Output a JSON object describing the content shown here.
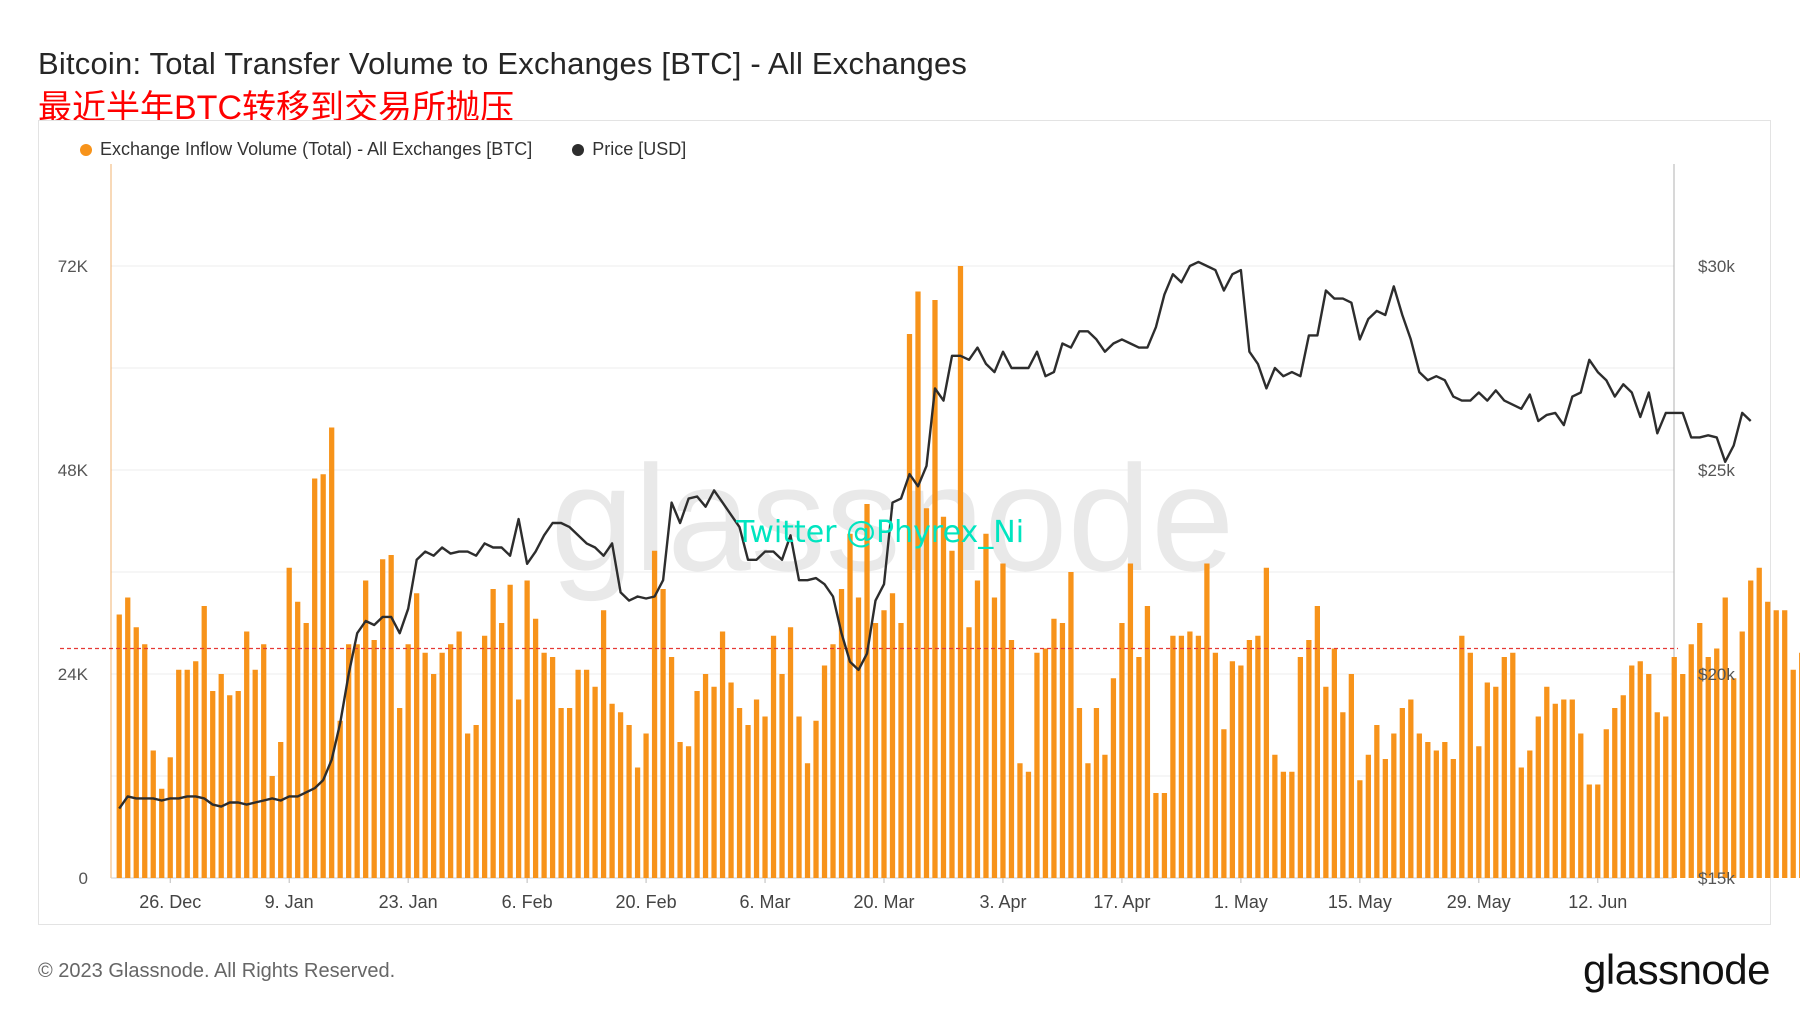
{
  "title": "Bitcoin: Total Transfer Volume to Exchanges [BTC] - All Exchanges",
  "subtitle": "最近半年BTC转移到交易所抛压",
  "legend": {
    "inflow": "Exchange Inflow Volume (Total) - All Exchanges [BTC]",
    "price": "Price [USD]"
  },
  "watermark": "glassnode",
  "overlay_text": "Twitter @Phyrex_Ni",
  "copyright": "© 2023 Glassnode. All Rights Reserved.",
  "logo": "glassnode",
  "colors": {
    "bars": "#f7931a",
    "price": "#2d2d2d",
    "reference": "#e53935",
    "overlay": "#00e5c0"
  },
  "chart_data": {
    "type": "bar",
    "x_start": "2022-12-20",
    "x_end": "2023-06-20",
    "x_ticks": [
      "26. Dec",
      "9. Jan",
      "23. Jan",
      "6. Feb",
      "20. Feb",
      "6. Mar",
      "20. Mar",
      "3. Apr",
      "17. Apr",
      "1. May",
      "15. May",
      "29. May",
      "12. Jun"
    ],
    "y_left": {
      "ticks": [
        "0",
        "24K",
        "48K",
        "72K"
      ],
      "ylim": [
        0,
        84000
      ]
    },
    "y_right": {
      "ticks": [
        "$15k",
        "$20k",
        "$25k",
        "$30k"
      ],
      "ylim": [
        15000,
        32500
      ]
    },
    "reference_line_y": 27000,
    "series": [
      {
        "name": "Exchange Inflow Volume (Total) - All Exchanges [BTC]",
        "axis": "left",
        "type": "bar",
        "values": [
          31000,
          33000,
          29500,
          27500,
          15000,
          10500,
          14200,
          24500,
          24500,
          25500,
          32000,
          22000,
          24000,
          21500,
          22000,
          29000,
          24500,
          27500,
          12000,
          16000,
          36500,
          32500,
          30000,
          47000,
          47500,
          53000,
          18500,
          27500,
          27500,
          35000,
          28000,
          37500,
          38000,
          20000,
          27500,
          33500,
          26500,
          24000,
          26500,
          27500,
          29000,
          17000,
          18000,
          28500,
          34000,
          30000,
          34500,
          21000,
          35000,
          30500,
          26500,
          26000,
          20000,
          20000,
          24500,
          24500,
          22500,
          31500,
          20500,
          19500,
          18000,
          13000,
          17000,
          38500,
          34000,
          26000,
          16000,
          15500,
          22000,
          24000,
          22500,
          29000,
          23000,
          20000,
          18000,
          21000,
          19000,
          28500,
          24000,
          29500,
          19000,
          13500,
          18500,
          25000,
          27500,
          34000,
          40500,
          33000,
          44000,
          30000,
          31500,
          33500,
          30000,
          64000,
          69000,
          43500,
          68000,
          42500,
          38500,
          72000,
          29500,
          35000,
          40500,
          33000,
          37000,
          28000,
          13500,
          12500,
          26500,
          27000,
          30500,
          30000,
          36000,
          20000,
          13500,
          20000,
          14500,
          23500,
          30000,
          37000,
          26000,
          32000,
          10000,
          10000,
          28500,
          28500,
          29000,
          28500,
          37000,
          26500,
          17500,
          25500,
          25000,
          28000,
          28500,
          36500,
          14500,
          12500,
          12500,
          26000,
          28000,
          32000,
          22500,
          27000,
          19500,
          24000,
          11500,
          14500,
          18000,
          14000,
          17000,
          20000,
          21000,
          17000,
          16000,
          15000,
          16000,
          14000,
          28500,
          26500,
          15500,
          23000,
          22500,
          26000,
          26500,
          13000,
          15000,
          19000,
          22500,
          20500,
          21000,
          21000,
          17000,
          11000,
          11000,
          17500,
          20000,
          21500,
          25000,
          25500,
          24000,
          19500,
          19000,
          26000,
          24000,
          27500,
          30000,
          26000,
          27000,
          33000,
          23500,
          29000,
          35000,
          36500,
          32500,
          31500,
          31500,
          24500,
          26500,
          30000,
          40000,
          39500,
          33000,
          30000,
          37500,
          38500,
          34000,
          35000,
          44000,
          46500,
          29500,
          27000,
          27000
        ]
      },
      {
        "name": "Price [USD]",
        "axis": "right",
        "type": "line",
        "values": [
          16700,
          17000,
          16950,
          16950,
          16950,
          16900,
          16950,
          16950,
          17000,
          17000,
          16950,
          16800,
          16750,
          16850,
          16850,
          16800,
          16850,
          16900,
          16950,
          16900,
          17000,
          17000,
          17100,
          17200,
          17400,
          17900,
          18800,
          20000,
          21000,
          21300,
          21200,
          21400,
          21400,
          21000,
          21600,
          22800,
          23000,
          22900,
          23100,
          22950,
          23000,
          23000,
          22900,
          23200,
          23100,
          23100,
          22900,
          23800,
          22700,
          23000,
          23400,
          23700,
          23700,
          23600,
          23400,
          23200,
          23100,
          22900,
          23200,
          22000,
          21800,
          21900,
          21850,
          21900,
          22300,
          24200,
          23700,
          24300,
          24350,
          24100,
          24500,
          24200,
          23900,
          23600,
          22800,
          22800,
          23000,
          23000,
          22800,
          23400,
          22300,
          22300,
          22350,
          22200,
          21900,
          21000,
          20300,
          20100,
          20500,
          21800,
          22200,
          24200,
          24300,
          24900,
          24600,
          25100,
          27000,
          26700,
          27800,
          27800,
          27700,
          28000,
          27600,
          27400,
          27900,
          27500,
          27500,
          27500,
          27900,
          27300,
          27400,
          28100,
          28000,
          28400,
          28400,
          28200,
          27900,
          28100,
          28200,
          28100,
          28000,
          28000,
          28500,
          29300,
          29800,
          29600,
          30000,
          30100,
          30000,
          29900,
          29400,
          29800,
          29900,
          27900,
          27600,
          27000,
          27500,
          27300,
          27400,
          27300,
          28300,
          28300,
          29400,
          29200,
          29200,
          29100,
          28200,
          28700,
          28900,
          28800,
          29500,
          28800,
          28200,
          27400,
          27200,
          27300,
          27200,
          26800,
          26700,
          26700,
          26900,
          26700,
          26950,
          26700,
          26600,
          26500,
          26850,
          26200,
          26350,
          26400,
          26100,
          26800,
          26900,
          27700,
          27400,
          27200,
          26800,
          27100,
          26900,
          26300,
          26900,
          25900,
          26400,
          26400,
          26400,
          25800,
          25800,
          25850,
          25800,
          25200,
          25600,
          26400,
          26200
        ]
      }
    ]
  }
}
